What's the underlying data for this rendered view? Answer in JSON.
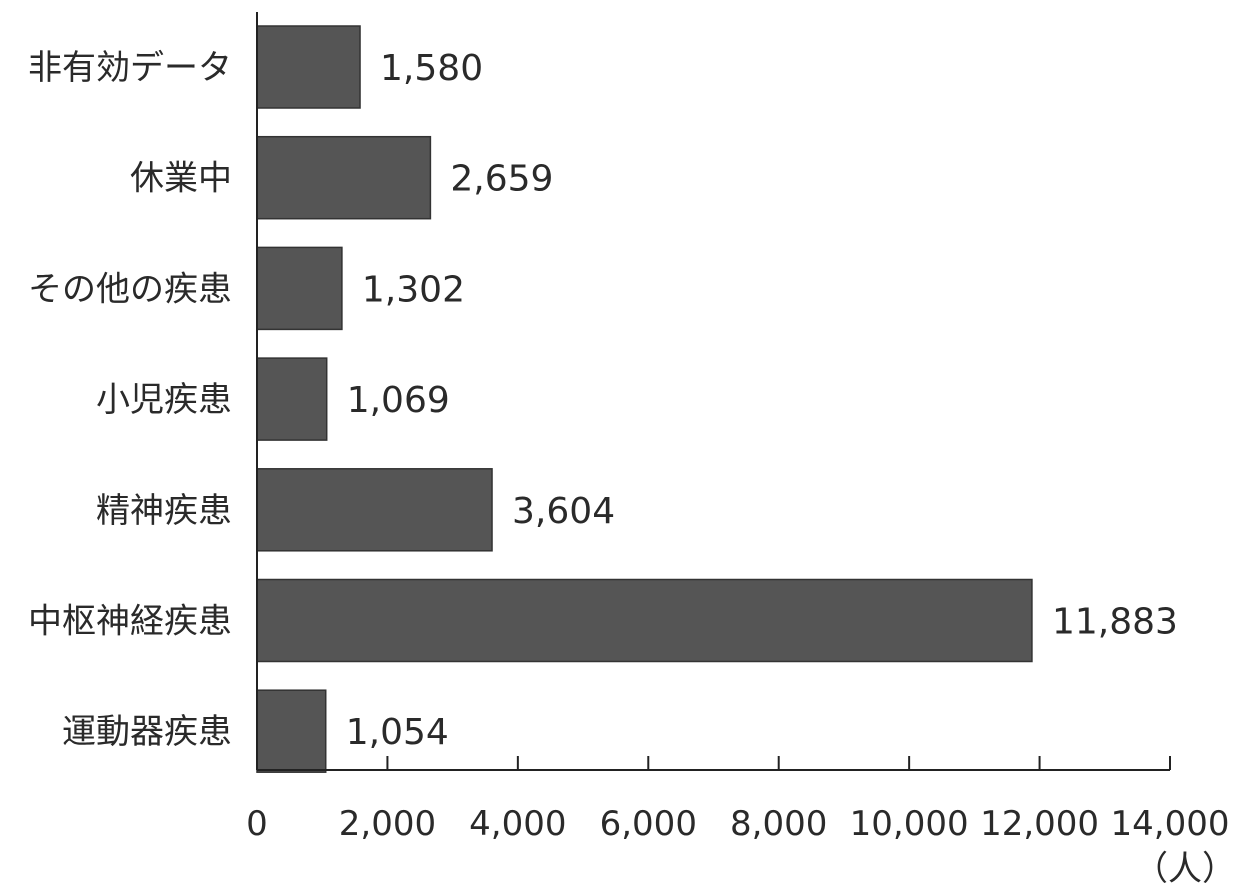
{
  "chart_data": {
    "type": "bar",
    "orientation": "horizontal",
    "categories": [
      "非有効データ",
      "休業中",
      "その他の疾患",
      "小児疾患",
      "精神疾患",
      "中枢神経疾患",
      "運動器疾患"
    ],
    "values": [
      1580,
      2659,
      1302,
      1069,
      3604,
      11883,
      1054
    ],
    "value_labels": [
      "1,580",
      "2,659",
      "1,302",
      "1,069",
      "3,604",
      "11,883",
      "1,054"
    ],
    "x_ticks": [
      "0",
      "2,000",
      "4,000",
      "6,000",
      "8,000",
      "10,000",
      "12,000",
      "14,000"
    ],
    "xlim": [
      0,
      14000
    ],
    "unit": "（人）",
    "grid": false,
    "legend": "none",
    "bar_color": "#555555"
  }
}
